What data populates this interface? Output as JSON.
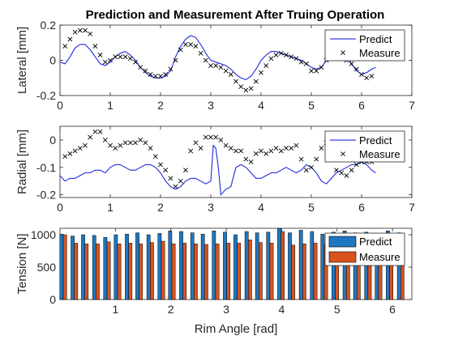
{
  "title": "Prediction and Measurement After Truing Operation",
  "colors": {
    "predict_line": "#1f2bd9",
    "measure_marker": "#000000",
    "bar_predict": "#1f77c0",
    "bar_measure": "#d9531e"
  },
  "chart_data": [
    {
      "type": "line",
      "ylabel": "Lateral [mm]",
      "xlim": [
        0,
        7
      ],
      "ylim": [
        -0.2,
        0.2
      ],
      "xticks": [
        "0",
        "1",
        "2",
        "3",
        "4",
        "5",
        "6",
        "7"
      ],
      "yticks": [
        "-0.2",
        "0",
        "0.2"
      ],
      "legend_position": "top-right",
      "series": [
        {
          "name": "Predict",
          "style": "line",
          "x": [
            0.0,
            0.1,
            0.2,
            0.3,
            0.4,
            0.5,
            0.6,
            0.7,
            0.8,
            0.9,
            1.0,
            1.1,
            1.2,
            1.3,
            1.4,
            1.5,
            1.6,
            1.7,
            1.8,
            1.9,
            2.0,
            2.1,
            2.2,
            2.3,
            2.4,
            2.5,
            2.6,
            2.7,
            2.8,
            2.9,
            3.0,
            3.1,
            3.2,
            3.3,
            3.4,
            3.5,
            3.6,
            3.7,
            3.8,
            3.9,
            4.0,
            4.1,
            4.2,
            4.3,
            4.4,
            4.5,
            4.6,
            4.7,
            4.8,
            4.9,
            5.0,
            5.1,
            5.2,
            5.3,
            5.4,
            5.5,
            5.6,
            5.7,
            5.8,
            5.9,
            6.0,
            6.1,
            6.2,
            6.28
          ],
          "y": [
            -0.01,
            -0.02,
            0.02,
            0.07,
            0.09,
            0.09,
            0.06,
            0.02,
            -0.02,
            -0.03,
            -0.01,
            0.02,
            0.04,
            0.05,
            0.03,
            0.0,
            -0.04,
            -0.07,
            -0.09,
            -0.1,
            -0.1,
            -0.09,
            -0.06,
            0.02,
            0.08,
            0.12,
            0.14,
            0.13,
            0.09,
            0.04,
            0.0,
            -0.01,
            -0.02,
            -0.03,
            -0.05,
            -0.08,
            -0.1,
            -0.11,
            -0.09,
            -0.05,
            0.0,
            0.03,
            0.05,
            0.05,
            0.04,
            0.03,
            0.02,
            0.01,
            0.0,
            -0.02,
            -0.04,
            -0.05,
            -0.04,
            0.0,
            0.04,
            0.06,
            0.06,
            0.03,
            -0.02,
            -0.06,
            -0.08,
            -0.07,
            -0.05,
            -0.04
          ]
        },
        {
          "name": "Measure",
          "style": "marker-x",
          "x": [
            0.1,
            0.2,
            0.3,
            0.4,
            0.5,
            0.6,
            0.7,
            0.8,
            0.9,
            1.0,
            1.1,
            1.2,
            1.3,
            1.4,
            1.5,
            1.6,
            1.7,
            1.8,
            1.9,
            2.0,
            2.1,
            2.2,
            2.3,
            2.4,
            2.5,
            2.6,
            2.7,
            2.8,
            2.9,
            3.0,
            3.1,
            3.2,
            3.3,
            3.4,
            3.5,
            3.6,
            3.7,
            3.8,
            3.9,
            4.0,
            4.1,
            4.2,
            4.3,
            4.4,
            4.5,
            4.6,
            4.7,
            4.8,
            4.9,
            5.0,
            5.1,
            5.2,
            5.3,
            5.4,
            5.5,
            5.6,
            5.7,
            5.8,
            5.9,
            6.0,
            6.1,
            6.2
          ],
          "y": [
            0.08,
            0.12,
            0.16,
            0.17,
            0.17,
            0.15,
            0.08,
            0.03,
            -0.01,
            0.0,
            0.02,
            0.02,
            0.02,
            0.01,
            -0.01,
            -0.04,
            -0.06,
            -0.08,
            -0.09,
            -0.09,
            -0.08,
            -0.05,
            0.0,
            0.06,
            0.09,
            0.09,
            0.08,
            0.04,
            0.0,
            -0.03,
            -0.03,
            -0.04,
            -0.06,
            -0.08,
            -0.12,
            -0.15,
            -0.17,
            -0.16,
            -0.12,
            -0.07,
            -0.03,
            0.01,
            0.03,
            0.04,
            0.03,
            0.02,
            0.01,
            -0.01,
            -0.02,
            -0.06,
            -0.06,
            -0.04,
            0.0,
            0.02,
            0.03,
            0.02,
            0.0,
            -0.02,
            -0.05,
            -0.08,
            -0.1,
            -0.09
          ]
        }
      ]
    },
    {
      "type": "line",
      "ylabel": "Radial [mm]",
      "xlim": [
        0,
        7
      ],
      "ylim": [
        -0.21,
        0.05
      ],
      "xticks": [
        "0",
        "1",
        "2",
        "3",
        "4",
        "5",
        "6",
        "7"
      ],
      "yticks": [
        "-0.2",
        "-0.1",
        "0"
      ],
      "legend_position": "top-right",
      "series": [
        {
          "name": "Predict",
          "style": "line",
          "x": [
            0.0,
            0.1,
            0.2,
            0.3,
            0.4,
            0.5,
            0.6,
            0.7,
            0.8,
            0.9,
            1.0,
            1.1,
            1.2,
            1.3,
            1.4,
            1.5,
            1.6,
            1.7,
            1.8,
            1.9,
            2.0,
            2.1,
            2.2,
            2.3,
            2.4,
            2.5,
            2.6,
            2.7,
            2.8,
            2.9,
            3.0,
            3.05,
            3.1,
            3.15,
            3.2,
            3.3,
            3.4,
            3.5,
            3.6,
            3.7,
            3.8,
            3.9,
            4.0,
            4.1,
            4.2,
            4.3,
            4.4,
            4.5,
            4.6,
            4.7,
            4.8,
            4.9,
            5.0,
            5.1,
            5.2,
            5.3,
            5.4,
            5.5,
            5.6,
            5.7,
            5.8,
            5.9,
            6.0,
            6.1,
            6.2,
            6.28
          ],
          "y": [
            -0.13,
            -0.15,
            -0.14,
            -0.14,
            -0.13,
            -0.12,
            -0.12,
            -0.11,
            -0.11,
            -0.12,
            -0.1,
            -0.09,
            -0.09,
            -0.1,
            -0.11,
            -0.11,
            -0.1,
            -0.09,
            -0.09,
            -0.1,
            -0.12,
            -0.15,
            -0.17,
            -0.18,
            -0.17,
            -0.15,
            -0.14,
            -0.14,
            -0.15,
            -0.16,
            -0.15,
            -0.02,
            -0.03,
            -0.1,
            -0.2,
            -0.18,
            -0.17,
            -0.1,
            -0.09,
            -0.1,
            -0.12,
            -0.14,
            -0.14,
            -0.13,
            -0.12,
            -0.12,
            -0.11,
            -0.1,
            -0.11,
            -0.12,
            -0.11,
            -0.09,
            -0.1,
            -0.12,
            -0.15,
            -0.16,
            -0.14,
            -0.12,
            -0.11,
            -0.1,
            -0.09,
            -0.09,
            -0.08,
            -0.09,
            -0.11,
            -0.12
          ]
        },
        {
          "name": "Measure",
          "style": "marker-x",
          "x": [
            0.1,
            0.2,
            0.3,
            0.4,
            0.5,
            0.6,
            0.7,
            0.8,
            0.9,
            1.0,
            1.1,
            1.2,
            1.3,
            1.4,
            1.5,
            1.6,
            1.7,
            1.8,
            1.9,
            2.0,
            2.1,
            2.2,
            2.3,
            2.4,
            2.5,
            2.6,
            2.7,
            2.8,
            2.9,
            3.0,
            3.1,
            3.2,
            3.3,
            3.4,
            3.5,
            3.6,
            3.7,
            3.8,
            3.9,
            4.0,
            4.1,
            4.2,
            4.3,
            4.4,
            4.5,
            4.6,
            4.7,
            4.8,
            4.9,
            5.0,
            5.1,
            5.2,
            5.3,
            5.4,
            5.5,
            5.6,
            5.7,
            5.8,
            5.9,
            6.0,
            6.1,
            6.2
          ],
          "y": [
            -0.06,
            -0.05,
            -0.04,
            -0.03,
            -0.02,
            0.01,
            0.03,
            0.03,
            0.0,
            -0.02,
            -0.03,
            -0.02,
            -0.01,
            -0.01,
            -0.01,
            0.0,
            -0.01,
            -0.03,
            -0.06,
            -0.09,
            -0.11,
            -0.14,
            -0.17,
            -0.15,
            -0.11,
            -0.04,
            -0.01,
            -0.03,
            0.01,
            0.01,
            0.01,
            0.0,
            -0.02,
            -0.03,
            -0.04,
            -0.04,
            -0.07,
            -0.08,
            -0.05,
            -0.04,
            -0.05,
            -0.04,
            -0.03,
            -0.04,
            -0.03,
            -0.03,
            -0.02,
            -0.07,
            -0.11,
            -0.1,
            -0.07,
            -0.03,
            -0.01,
            -0.06,
            -0.11,
            -0.12,
            -0.13,
            -0.11,
            -0.09,
            -0.08,
            -0.08,
            -0.08
          ]
        }
      ]
    },
    {
      "type": "bar",
      "ylabel": "Tension [N]",
      "xlabel": "Rim Angle [rad]",
      "xlim": [
        0,
        6.35
      ],
      "ylim": [
        0,
        1100
      ],
      "xticks": [
        "1",
        "2",
        "3",
        "4",
        "5",
        "6"
      ],
      "yticks": [
        "0",
        "500",
        "1000"
      ],
      "legend_position": "top-right",
      "x": [
        0.0,
        0.2,
        0.39,
        0.59,
        0.79,
        0.98,
        1.18,
        1.37,
        1.57,
        1.77,
        1.96,
        2.16,
        2.36,
        2.55,
        2.75,
        2.95,
        3.14,
        3.34,
        3.53,
        3.73,
        3.93,
        4.12,
        4.32,
        4.52,
        4.71,
        4.91,
        5.11,
        5.3,
        5.5,
        5.69,
        5.89,
        6.09
      ],
      "series": [
        {
          "name": "Predict",
          "values": [
            1010,
            980,
            1000,
            990,
            960,
            1000,
            1010,
            1030,
            1000,
            1020,
            1060,
            1050,
            1030,
            1010,
            1060,
            1040,
            1000,
            1050,
            1030,
            1040,
            1100,
            1030,
            1070,
            1050,
            1010,
            1040,
            1060,
            1030,
            1040,
            1010,
            1060,
            1030
          ]
        },
        {
          "name": "Measure",
          "values": [
            1000,
            870,
            860,
            860,
            890,
            860,
            870,
            860,
            880,
            900,
            860,
            870,
            860,
            850,
            860,
            870,
            870,
            920,
            880,
            870,
            1050,
            840,
            860,
            870,
            850,
            920,
            910,
            870,
            860,
            880,
            880,
            910
          ]
        }
      ]
    }
  ]
}
